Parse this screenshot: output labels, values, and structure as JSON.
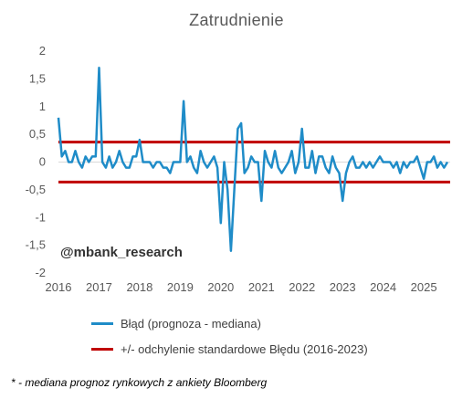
{
  "chart_data": {
    "type": "line",
    "title": "Zatrudnienie",
    "xlabel": "",
    "ylabel": "",
    "ylim": [
      -2,
      2
    ],
    "xlim": [
      2016.0,
      2025.65
    ],
    "y_ticks": [
      "2",
      "1,5",
      "1",
      "0,5",
      "0",
      "-0,5",
      "-1",
      "-1,5",
      "-2"
    ],
    "y_tick_values": [
      2,
      1.5,
      1,
      0.5,
      0,
      -0.5,
      -1,
      -1.5,
      -2
    ],
    "x_ticks": [
      "2016",
      "2017",
      "2018",
      "2019",
      "2020",
      "2021",
      "2022",
      "2023",
      "2024",
      "2025"
    ],
    "x_tick_values": [
      2016,
      2017,
      2018,
      2019,
      2020,
      2021,
      2022,
      2023,
      2024,
      2025
    ],
    "grid": false,
    "legend_position": "bottom",
    "series": [
      {
        "name": "Błąd (prognoza - mediana)",
        "color": "#1f8cc8",
        "x": [
          2016.0,
          2016.083,
          2016.167,
          2016.25,
          2016.333,
          2016.417,
          2016.5,
          2016.583,
          2016.667,
          2016.75,
          2016.833,
          2016.917,
          2017.0,
          2017.083,
          2017.167,
          2017.25,
          2017.333,
          2017.417,
          2017.5,
          2017.583,
          2017.667,
          2017.75,
          2017.833,
          2017.917,
          2018.0,
          2018.083,
          2018.167,
          2018.25,
          2018.333,
          2018.417,
          2018.5,
          2018.583,
          2018.667,
          2018.75,
          2018.833,
          2018.917,
          2019.0,
          2019.083,
          2019.167,
          2019.25,
          2019.333,
          2019.417,
          2019.5,
          2019.583,
          2019.667,
          2019.75,
          2019.833,
          2019.917,
          2020.0,
          2020.083,
          2020.167,
          2020.25,
          2020.333,
          2020.417,
          2020.5,
          2020.583,
          2020.667,
          2020.75,
          2020.833,
          2020.917,
          2021.0,
          2021.083,
          2021.167,
          2021.25,
          2021.333,
          2021.417,
          2021.5,
          2021.583,
          2021.667,
          2021.75,
          2021.833,
          2021.917,
          2022.0,
          2022.083,
          2022.167,
          2022.25,
          2022.333,
          2022.417,
          2022.5,
          2022.583,
          2022.667,
          2022.75,
          2022.833,
          2022.917,
          2023.0,
          2023.083,
          2023.167,
          2023.25,
          2023.333,
          2023.417,
          2023.5,
          2023.583,
          2023.667,
          2023.75,
          2023.833,
          2023.917,
          2024.0,
          2024.083,
          2024.167,
          2024.25,
          2024.333,
          2024.417,
          2024.5,
          2024.583,
          2024.667,
          2024.75,
          2024.833,
          2024.917,
          2025.0,
          2025.083,
          2025.167,
          2025.25,
          2025.333,
          2025.417,
          2025.5,
          2025.583
        ],
        "values": [
          0.8,
          0.1,
          0.2,
          0.0,
          0.0,
          0.2,
          0.0,
          -0.1,
          0.1,
          0.0,
          0.1,
          0.1,
          1.7,
          0.0,
          -0.1,
          0.1,
          -0.1,
          0.0,
          0.2,
          0.0,
          -0.1,
          -0.1,
          0.1,
          0.1,
          0.4,
          0.0,
          0.0,
          0.0,
          -0.1,
          0.0,
          0.0,
          -0.1,
          -0.1,
          -0.2,
          0.0,
          0.0,
          0.0,
          1.1,
          0.0,
          0.1,
          -0.1,
          -0.2,
          0.2,
          0.0,
          -0.1,
          0.0,
          0.1,
          -0.1,
          -1.1,
          0.0,
          -0.5,
          -1.6,
          -0.5,
          0.6,
          0.7,
          -0.2,
          -0.1,
          0.1,
          0.0,
          0.0,
          -0.7,
          0.2,
          0.0,
          -0.1,
          0.2,
          -0.1,
          -0.2,
          -0.1,
          0.0,
          0.2,
          -0.2,
          0.0,
          0.6,
          -0.1,
          -0.1,
          0.2,
          -0.2,
          0.1,
          0.1,
          -0.1,
          -0.2,
          0.1,
          -0.1,
          -0.2,
          -0.7,
          -0.2,
          0.0,
          0.1,
          -0.1,
          -0.1,
          0.0,
          -0.1,
          0.0,
          -0.1,
          0.0,
          0.1,
          0.0,
          0.0,
          0.0,
          -0.1,
          0.0,
          -0.2,
          0.0,
          -0.1,
          0.0,
          0.0,
          0.1,
          -0.1,
          -0.3,
          0.0,
          0.0,
          0.1,
          -0.1,
          0.0,
          -0.1,
          0.0
        ]
      },
      {
        "name": "+/- odchylenie standardowe Błędu (2016-2023)",
        "color": "#c00000",
        "upper": 0.36,
        "lower": -0.36
      }
    ],
    "annotations": [
      "@mbank_research"
    ]
  },
  "footnote": "* - mediana prognoz rynkowych z ankiety Bloomberg"
}
